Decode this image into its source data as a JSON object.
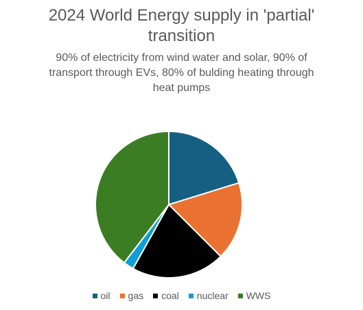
{
  "chart_data": {
    "type": "pie",
    "title": "2024 World Energy supply in 'partial' transition",
    "title_lines": [
      "2024 World Energy supply in 'partial'",
      "transition"
    ],
    "subtitle": "90% of electricity from wind water and solar, 90% of transport through EVs, 80% of bulding heating through heat pumps",
    "subtitle_lines": [
      "90% of electricity from wind water and solar, 90% of",
      "transport through EVs, 80% of bulding heating through",
      "heat pumps"
    ],
    "categories": [
      "oil",
      "gas",
      "coal",
      "nuclear",
      "WWS"
    ],
    "values": [
      20.2,
      17.3,
      20.6,
      2.3,
      39.6
    ],
    "colors": [
      "#156082",
      "#E97132",
      "#000000",
      "#0F9ED5",
      "#3B7D23"
    ],
    "legend_position": "bottom"
  }
}
